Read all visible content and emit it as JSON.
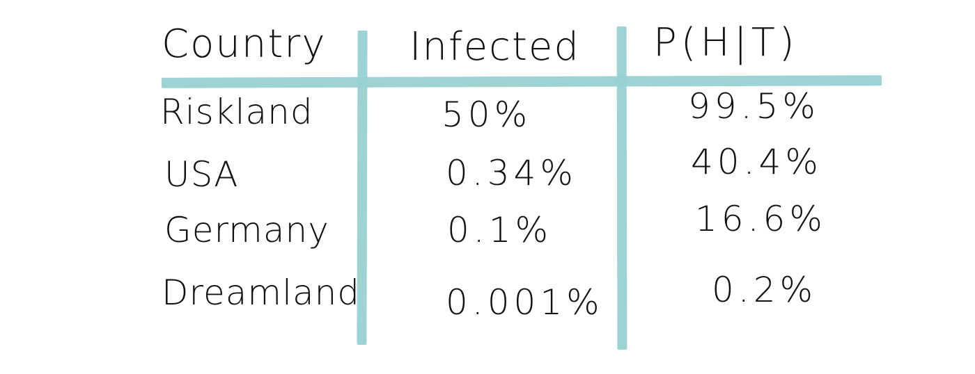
{
  "table": {
    "headers": [
      "Country",
      "Infected",
      "P(H|T)"
    ],
    "rows": [
      [
        "Riskland",
        "50%",
        "99.5%"
      ],
      [
        "USA",
        "0.34%",
        "40.4%"
      ],
      [
        "Germany",
        "0.1%",
        "16.6%"
      ],
      [
        "Dreamland",
        "0.001%",
        "0.2%"
      ]
    ]
  },
  "colors": {
    "rule": "#98d1d1",
    "ink": "#111111",
    "background": "#ffffff"
  }
}
